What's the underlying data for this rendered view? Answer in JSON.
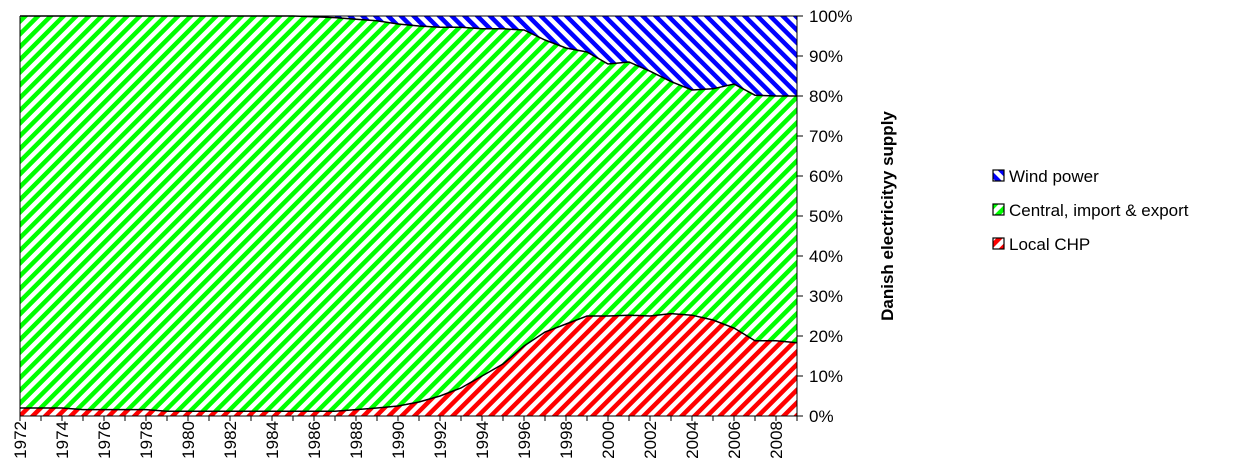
{
  "chart_data": {
    "type": "area",
    "stacked": "percent",
    "title": "",
    "xlabel": "",
    "ylabel": "Danish electricityy supply",
    "ylim": [
      0,
      100
    ],
    "y_ticks": [
      "0%",
      "10%",
      "20%",
      "30%",
      "40%",
      "50%",
      "60%",
      "70%",
      "80%",
      "90%",
      "100%"
    ],
    "y_axis_side": "right",
    "x": [
      1972,
      1973,
      1974,
      1975,
      1976,
      1977,
      1978,
      1979,
      1980,
      1981,
      1982,
      1983,
      1984,
      1985,
      1986,
      1987,
      1988,
      1989,
      1990,
      1991,
      1992,
      1993,
      1994,
      1995,
      1996,
      1997,
      1998,
      1999,
      2000,
      2001,
      2002,
      2003,
      2004,
      2005,
      2006,
      2007,
      2008,
      2009
    ],
    "x_tick_labels": [
      "1972",
      "1974",
      "1976",
      "1978",
      "1980",
      "1982",
      "1984",
      "1986",
      "1988",
      "1990",
      "1992",
      "1994",
      "1996",
      "1998",
      "2000",
      "2002",
      "2004",
      "2006",
      "2008"
    ],
    "grid": false,
    "legend_position": "right",
    "series": [
      {
        "name": "Local CHP",
        "color": "#ff0000",
        "pattern": "diagonal-stripes",
        "values": [
          2.0,
          2.0,
          2.0,
          1.6,
          1.6,
          1.6,
          1.6,
          1.2,
          1.2,
          1.2,
          1.2,
          1.2,
          1.2,
          1.2,
          1.2,
          1.2,
          1.6,
          2.0,
          2.5,
          3.5,
          5.0,
          7.0,
          10.0,
          13.0,
          17.5,
          21.0,
          23.0,
          25.0,
          25.0,
          25.2,
          25.0,
          25.6,
          25.2,
          24.0,
          22.0,
          18.8,
          18.8,
          18.3
        ]
      },
      {
        "name": "Central, import & export",
        "color": "#00ff00",
        "pattern": "diagonal-stripes",
        "values": [
          98.0,
          98.0,
          98.0,
          98.4,
          98.4,
          98.4,
          98.4,
          98.8,
          98.8,
          98.8,
          98.8,
          98.8,
          98.8,
          98.8,
          98.6,
          98.4,
          97.6,
          96.8,
          95.5,
          94.0,
          92.2,
          90.2,
          86.8,
          83.8,
          79.0,
          73.0,
          69.0,
          66.0,
          63.0,
          63.3,
          61.2,
          58.0,
          56.3,
          57.8,
          61.0,
          61.4,
          61.2,
          61.7
        ]
      },
      {
        "name": "Wind power",
        "color": "#0000ff",
        "pattern": "diagonal-stripes",
        "values": [
          0,
          0,
          0,
          0,
          0,
          0,
          0,
          0,
          0,
          0,
          0,
          0,
          0,
          0,
          0.2,
          0.4,
          0.8,
          1.2,
          2.0,
          2.5,
          2.8,
          2.8,
          3.2,
          3.2,
          3.5,
          6.0,
          8.0,
          9.0,
          12.0,
          11.5,
          13.8,
          16.4,
          18.5,
          18.2,
          17.0,
          19.8,
          20.0,
          20.0
        ]
      }
    ],
    "legend_order": [
      "Wind power",
      "Central, import & export",
      "Local CHP"
    ]
  }
}
